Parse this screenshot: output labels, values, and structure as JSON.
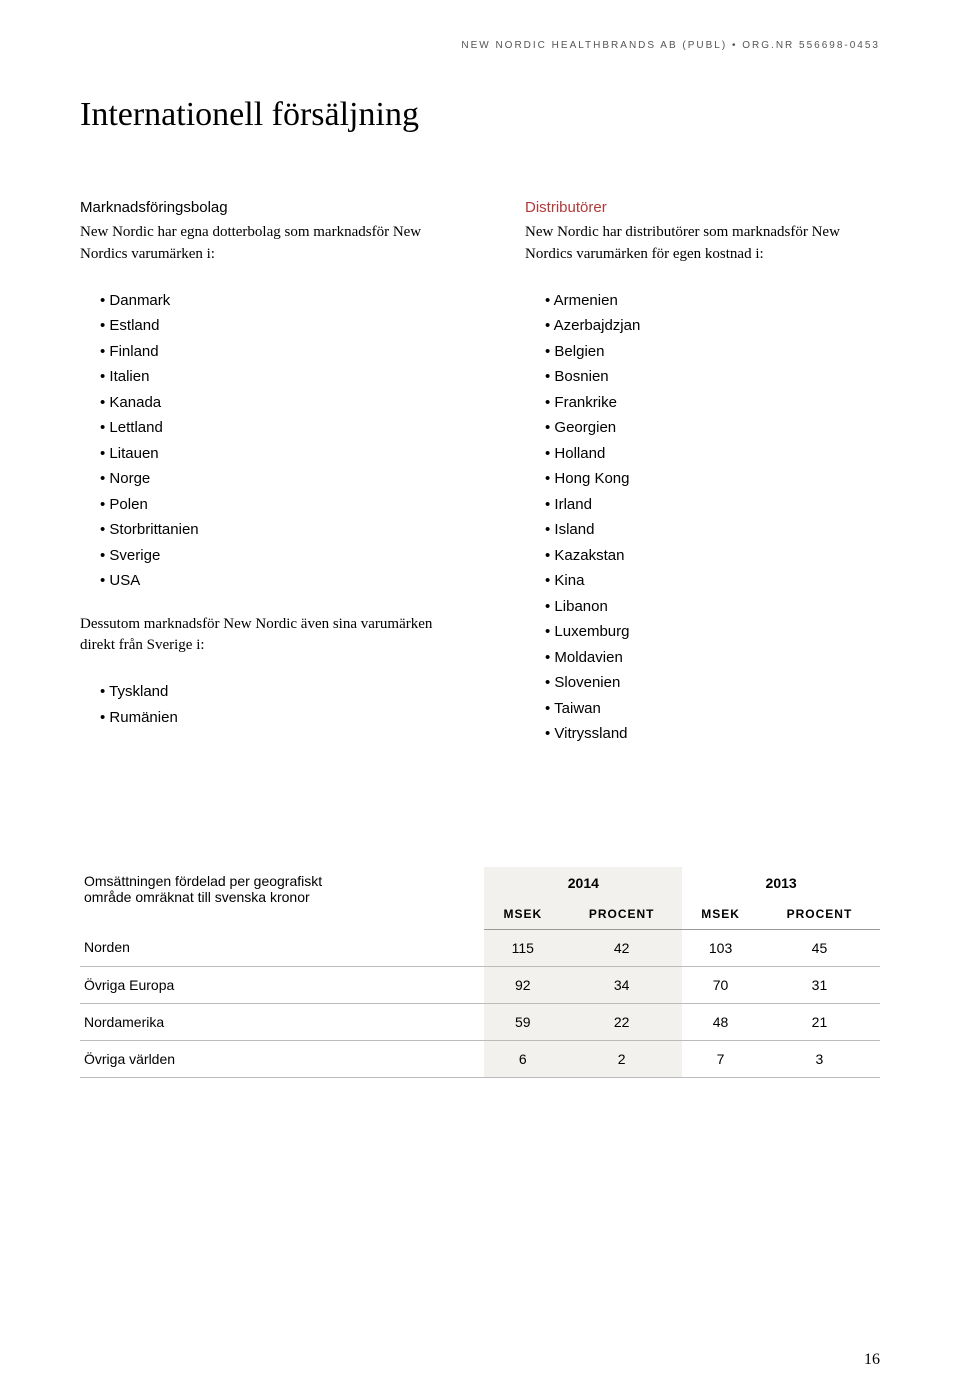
{
  "header": {
    "company": "NEW NORDIC HEALTHBRANDS AB (PUBL)",
    "separator": "•",
    "org_label": "ORG.NR",
    "org_number": "556698-0453"
  },
  "page_title": "Internationell försäljning",
  "left_column": {
    "heading": "Marknadsföringsbolag",
    "intro": "New Nordic har egna dotterbolag som marknadsför New Nordics varumärken i:",
    "countries": [
      "Danmark",
      "Estland",
      "Finland",
      "Italien",
      "Kanada",
      "Lettland",
      "Litauen",
      "Norge",
      "Polen",
      "Storbrittanien",
      "Sverige",
      "USA"
    ],
    "mid_text": "Dessutom marknadsför New Nordic även sina varumärken direkt från Sverige i:",
    "countries2": [
      "Tyskland",
      "Rumänien"
    ]
  },
  "right_column": {
    "heading": "Distributörer",
    "intro": "New Nordic har distributörer som marknadsför New Nordics varumärken för egen kostnad i:",
    "countries": [
      "Armenien",
      "Azerbajdzjan",
      "Belgien",
      "Bosnien",
      "Frankrike",
      "Georgien",
      "Holland",
      "Hong Kong",
      "Irland",
      "Island",
      "Kazakstan",
      "Kina",
      "Libanon",
      "Luxemburg",
      "Moldavien",
      "Slovenien",
      "Taiwan",
      "Vitryssland"
    ]
  },
  "table": {
    "label_line1": "Omsättningen fördelad per geografiskt",
    "label_line2": "område omräknat till svenska kronor",
    "year1": "2014",
    "year2": "2013",
    "sub_msek": "MSEK",
    "sub_procent": "PROCENT",
    "rows": [
      {
        "label": "Norden",
        "msek1": "115",
        "proc1": "42",
        "msek2": "103",
        "proc2": "45"
      },
      {
        "label": "Övriga Europa",
        "msek1": "92",
        "proc1": "34",
        "msek2": "70",
        "proc2": "31"
      },
      {
        "label": "Nordamerika",
        "msek1": "59",
        "proc1": "22",
        "msek2": "48",
        "proc2": "21"
      },
      {
        "label": "Övriga världen",
        "msek1": "6",
        "proc1": "2",
        "msek2": "7",
        "proc2": "3"
      }
    ],
    "colors": {
      "highlight_bg": "#f3f1ed",
      "border_color": "#999999",
      "row_border": "#bbbbbb"
    }
  },
  "page_number": "16",
  "colors": {
    "heading_red": "#b3383a",
    "text_black": "#000000",
    "header_gray": "#555555",
    "background": "#ffffff"
  }
}
